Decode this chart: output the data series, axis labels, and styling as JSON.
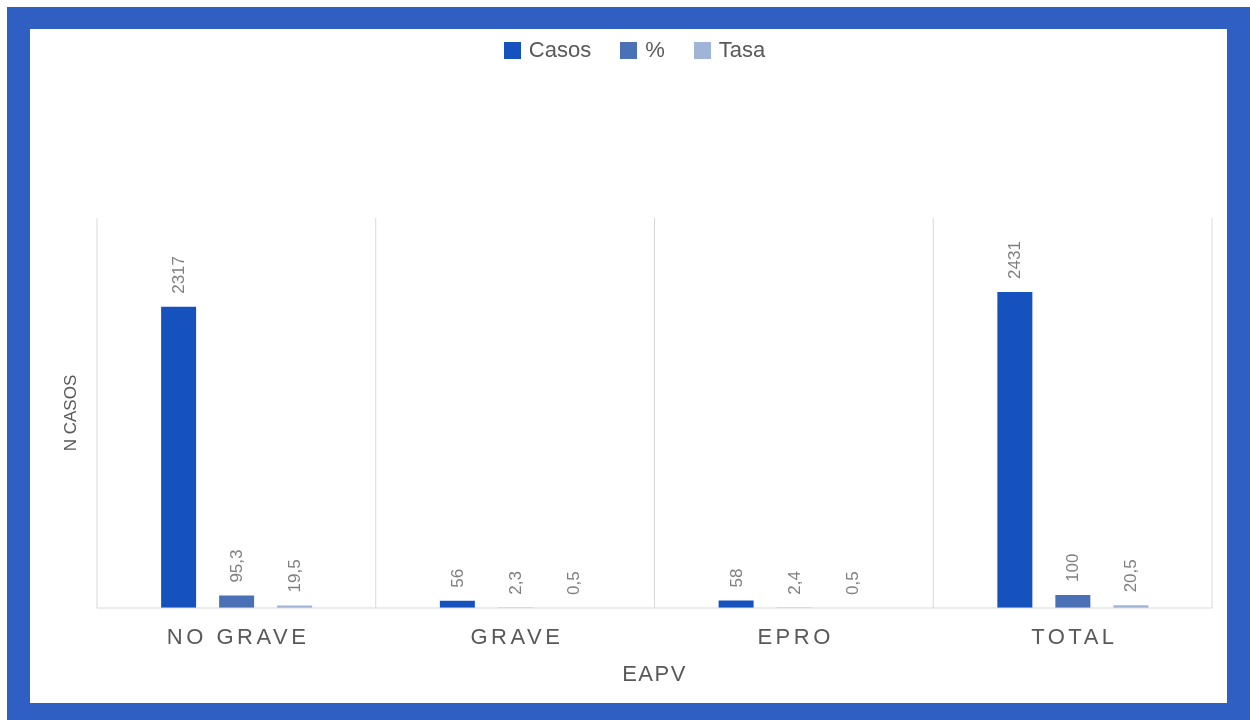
{
  "chart_data": {
    "type": "bar",
    "xlabel": "EAPV",
    "ylabel": "N CASOS",
    "categories": [
      "NO GRAVE",
      "GRAVE",
      "EPRO",
      "TOTAL"
    ],
    "series": [
      {
        "name": "Casos",
        "color": "#1652be",
        "values": [
          2317,
          56,
          58,
          2431
        ],
        "value_labels": [
          "2317",
          "56",
          "58",
          "2431"
        ]
      },
      {
        "name": "%",
        "color": "#4a70b6",
        "values": [
          95.3,
          2.3,
          2.4,
          100
        ],
        "value_labels": [
          "95,3",
          "2,3",
          "2,4",
          "100"
        ]
      },
      {
        "name": "Tasa",
        "color": "#9fb4d6",
        "values": [
          19.5,
          0.5,
          0.5,
          20.5
        ],
        "value_labels": [
          "19,5",
          "0,5",
          "0,5",
          "20,5"
        ]
      }
    ],
    "ylim": [
      0,
      3000
    ],
    "grid": "x",
    "legend": "top",
    "tick_labels": "x"
  }
}
